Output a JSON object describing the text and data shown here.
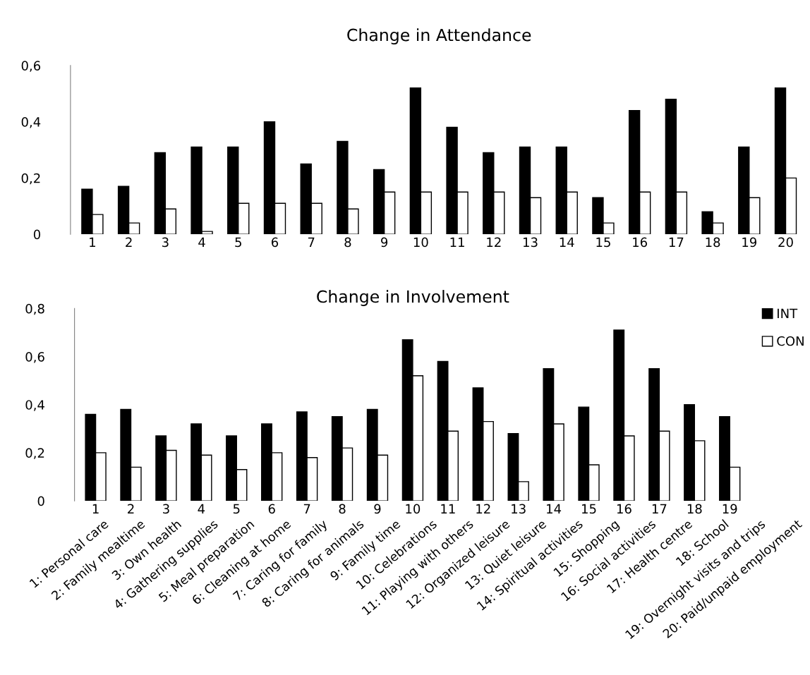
{
  "chart_data": [
    {
      "type": "bar",
      "title": "Change in Attendance",
      "categories": [
        "1",
        "2",
        "3",
        "4",
        "5",
        "6",
        "7",
        "8",
        "9",
        "10",
        "11",
        "12",
        "13",
        "14",
        "15",
        "16",
        "17",
        "18",
        "19",
        "20"
      ],
      "series": [
        {
          "color": "#000000",
          "values": [
            0.16,
            0.17,
            0.29,
            0.31,
            0.31,
            0.4,
            0.25,
            0.33,
            0.23,
            0.52,
            0.38,
            0.29,
            0.31,
            0.31,
            0.13,
            0.44,
            0.48,
            0.08,
            0.31,
            0.52
          ]
        },
        {
          "color": "#ffffff",
          "values": [
            0.07,
            0.04,
            0.09,
            0.01,
            0.11,
            0.11,
            0.11,
            0.09,
            0.15,
            0.15,
            0.15,
            0.15,
            0.13,
            0.15,
            0.04,
            0.15,
            0.15,
            0.04,
            0.13,
            0.2
          ]
        }
      ],
      "ylim": [
        0,
        0.6
      ],
      "yticks": [
        0,
        {
          "value": 0.2,
          "label": "0,2"
        },
        {
          "value": 0.4,
          "label": "0,4"
        },
        {
          "value": 0.6,
          "label": "0,6"
        }
      ],
      "grid": false,
      "legend": false
    },
    {
      "type": "bar",
      "title": "Change in Involvement",
      "categories": [
        "1",
        "2",
        "3",
        "4",
        "5",
        "6",
        "7",
        "8",
        "9",
        "10",
        "11",
        "12",
        "13",
        "14",
        "15",
        "16",
        "17",
        "18",
        "19"
      ],
      "series": [
        {
          "name": "INT",
          "color": "#000000",
          "values": [
            0.36,
            0.38,
            0.27,
            0.32,
            0.27,
            0.32,
            0.37,
            0.35,
            0.38,
            0.67,
            0.58,
            0.47,
            0.28,
            0.55,
            0.39,
            0.71,
            0.55,
            0.4,
            0.35
          ]
        },
        {
          "name": "CON",
          "color": "#ffffff",
          "values": [
            0.2,
            0.14,
            0.21,
            0.19,
            0.13,
            0.2,
            0.18,
            0.22,
            0.19,
            0.52,
            0.29,
            0.33,
            0.08,
            0.32,
            0.15,
            0.27,
            0.29,
            0.25,
            0.14
          ]
        }
      ],
      "ylim": [
        0,
        0.8
      ],
      "yticks": [
        0,
        {
          "value": 0.2,
          "label": "0,2"
        },
        {
          "value": 0.4,
          "label": "0,4"
        },
        {
          "value": 0.6,
          "label": "0,6"
        },
        {
          "value": 0.8,
          "label": "0,8"
        }
      ],
      "grid": false,
      "legend": "top right",
      "annotations": [
        "1: Personal care",
        "2: Family mealtime",
        "3: Own health",
        "4: Gathering supplies",
        "5: Meal preparation",
        "6: Cleaning at home",
        "7: Caring for family",
        "8: Caring for animals",
        "9: Family time",
        "10: Celebrations",
        "11: Playing with others",
        "12: Organized leisure",
        "13: Quiet leisure",
        "14: Spiritual activities",
        "15: Shopping",
        "16: Social activities",
        "17: Health centre",
        "18: School",
        "19: Overnight visits and trips",
        "20: Paid/unpaid employment"
      ]
    }
  ]
}
